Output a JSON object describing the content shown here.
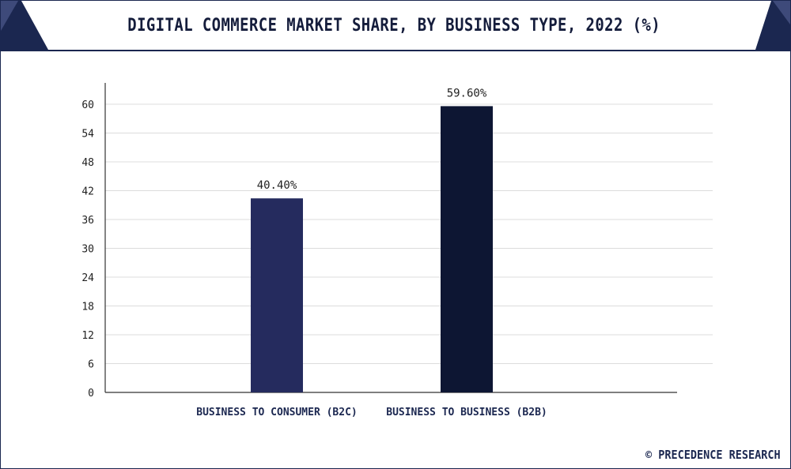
{
  "header": {
    "title": "DIGITAL COMMERCE MARKET SHARE, BY BUSINESS TYPE, 2022 (%)"
  },
  "footer": {
    "credit": "© PRECEDENCE RESEARCH"
  },
  "colors": {
    "frame": "#1b2750",
    "grid": "#dcdcdc",
    "axis": "#333333"
  },
  "chart_data": {
    "type": "bar",
    "title": "DIGITAL COMMERCE MARKET SHARE, BY BUSINESS TYPE, 2022 (%)",
    "xlabel": "",
    "ylabel": "",
    "categories": [
      "BUSINESS TO CONSUMER (B2C)",
      "BUSINESS TO BUSINESS (B2B)"
    ],
    "values": [
      40.4,
      59.6
    ],
    "value_labels": [
      "40.40%",
      "59.60%"
    ],
    "bar_colors": [
      "#252b5e",
      "#0d1633"
    ],
    "ylim": [
      0,
      60
    ],
    "yticks": [
      0,
      6,
      12,
      18,
      24,
      30,
      36,
      42,
      48,
      54,
      60
    ],
    "grid": true,
    "legend": "none"
  }
}
